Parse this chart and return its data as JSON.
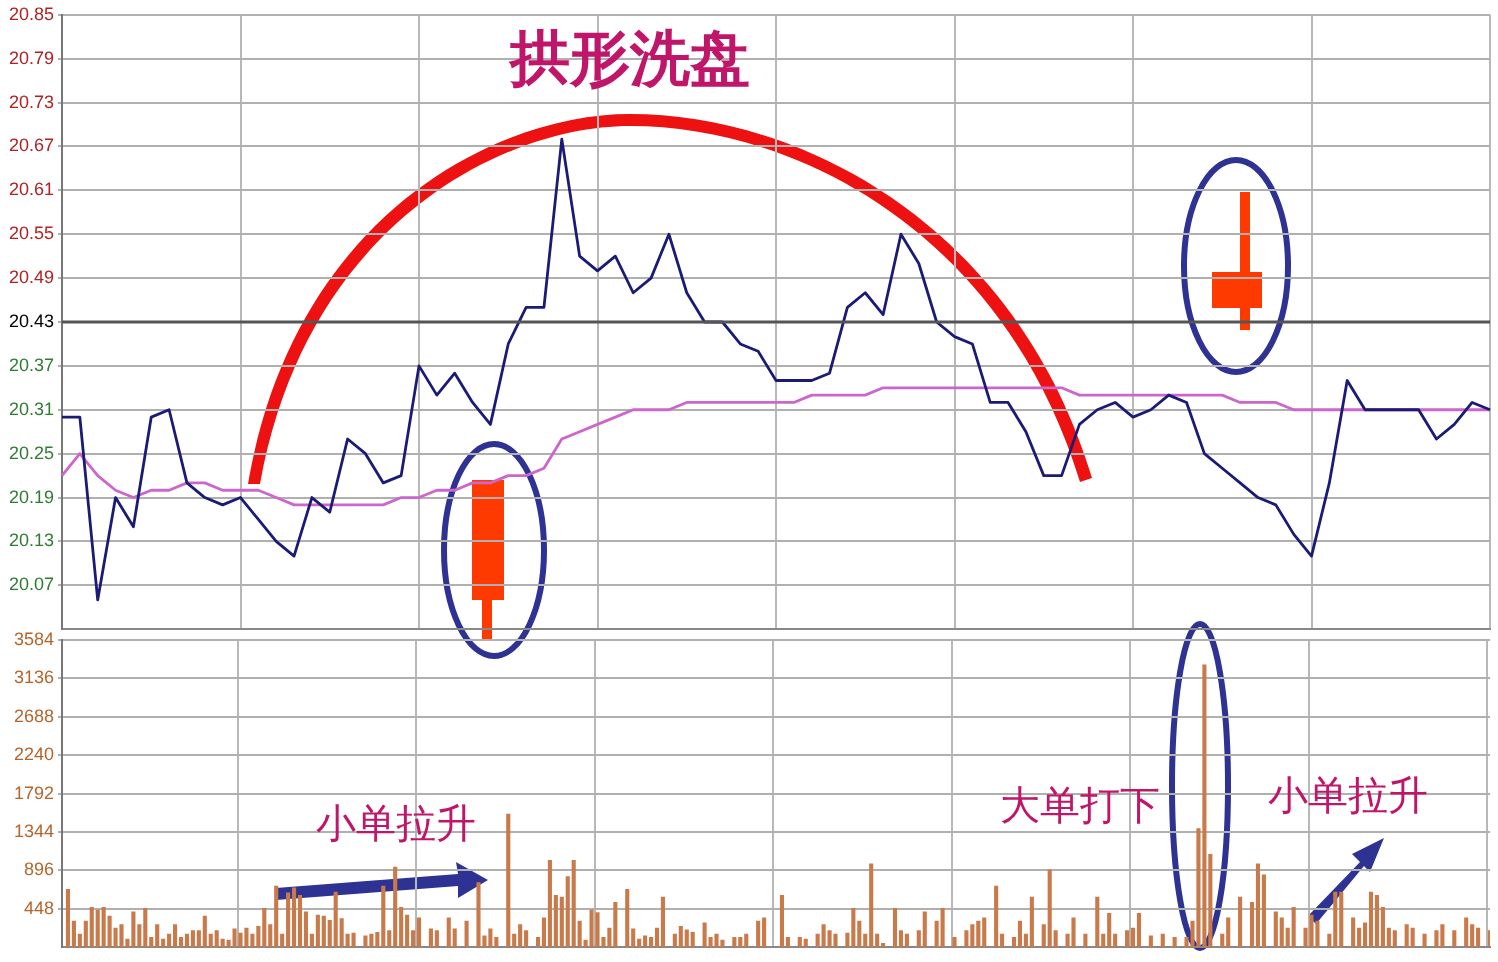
{
  "chart_data": [
    {
      "type": "line",
      "title": "拱形洗盘",
      "categories": [
        null,
        null,
        null,
        null,
        null,
        null,
        null,
        null,
        null,
        null,
        null,
        null,
        null,
        null,
        null,
        null,
        null,
        null,
        null,
        null,
        null,
        null,
        null,
        null,
        null,
        null,
        null,
        null,
        null,
        null,
        null,
        null,
        null,
        null,
        null,
        null,
        null,
        null,
        null,
        null,
        null,
        null,
        null,
        null,
        null,
        null,
        null,
        null,
        null,
        null,
        null,
        null,
        null,
        null,
        null,
        null,
        null,
        null,
        null,
        null,
        null,
        null,
        null,
        null,
        null,
        null,
        null,
        null,
        null,
        null,
        null,
        null,
        null,
        null,
        null,
        null,
        null,
        null,
        null,
        null,
        null
      ],
      "ylim": [
        20.01,
        20.85
      ],
      "yticks": [
        20.07,
        20.13,
        20.19,
        20.25,
        20.31,
        20.37,
        20.43,
        20.49,
        20.55,
        20.61,
        20.67,
        20.73,
        20.79,
        20.85
      ],
      "grid": true,
      "tick_labels": "y",
      "ref_lines": [
        {
          "axis": "y",
          "value": 20.43,
          "color": "#555555"
        }
      ],
      "series": [
        {
          "color": "#1b1b75",
          "values": [
            20.3,
            20.3,
            20.05,
            20.19,
            20.15,
            20.3,
            20.31,
            20.21,
            20.19,
            20.18,
            20.19,
            20.16,
            20.13,
            20.11,
            20.19,
            20.17,
            20.27,
            20.25,
            20.21,
            20.22,
            20.37,
            20.33,
            20.36,
            20.32,
            20.29,
            20.4,
            20.45,
            20.45,
            20.68,
            20.52,
            20.5,
            20.52,
            20.47,
            20.49,
            20.55,
            20.47,
            20.43,
            20.43,
            20.4,
            20.39,
            20.35,
            20.35,
            20.35,
            20.36,
            20.45,
            20.47,
            20.44,
            20.55,
            20.51,
            20.43,
            20.41,
            20.4,
            20.32,
            20.32,
            20.28,
            20.22,
            20.22,
            20.29,
            20.31,
            20.32,
            20.3,
            20.31,
            20.33,
            20.32,
            20.25,
            20.23,
            20.21,
            20.19,
            20.18,
            20.14,
            20.11,
            20.21,
            20.35,
            20.31,
            20.31,
            20.31,
            20.31,
            20.27,
            20.29,
            20.32,
            20.31
          ]
        },
        {
          "color": "#cc66cc",
          "values": [
            20.22,
            20.25,
            20.22,
            20.2,
            20.19,
            20.2,
            20.2,
            20.21,
            20.21,
            20.2,
            20.2,
            20.2,
            20.19,
            20.18,
            20.18,
            20.18,
            20.18,
            20.18,
            20.18,
            20.19,
            20.19,
            20.2,
            20.2,
            20.21,
            20.21,
            20.22,
            20.22,
            20.23,
            20.27,
            20.28,
            20.29,
            20.3,
            20.31,
            20.31,
            20.31,
            20.32,
            20.32,
            20.32,
            20.32,
            20.32,
            20.32,
            20.32,
            20.33,
            20.33,
            20.33,
            20.33,
            20.34,
            20.34,
            20.34,
            20.34,
            20.34,
            20.34,
            20.34,
            20.34,
            20.34,
            20.34,
            20.34,
            20.33,
            20.33,
            20.33,
            20.33,
            20.33,
            20.33,
            20.33,
            20.33,
            20.33,
            20.32,
            20.32,
            20.32,
            20.31,
            20.31,
            20.31,
            20.31,
            20.31,
            20.31,
            20.31,
            20.31,
            20.31,
            20.31,
            20.31,
            20.31
          ]
        }
      ]
    },
    {
      "type": "bar",
      "color": "#c87a4a",
      "categories": [
        null,
        null,
        null,
        null,
        null,
        null,
        null,
        null,
        null,
        null,
        null,
        null,
        null,
        null,
        null,
        null,
        null,
        null,
        null,
        null,
        null,
        null,
        null,
        null,
        null,
        null,
        null,
        null,
        null,
        null,
        null,
        null,
        null,
        null,
        null,
        null,
        null,
        null,
        null,
        null,
        null,
        null,
        null,
        null,
        null,
        null,
        null,
        null,
        null,
        null,
        null,
        null,
        null,
        null,
        null,
        null,
        null,
        null,
        null,
        null,
        null,
        null,
        null,
        null,
        null,
        null,
        null,
        null,
        null,
        null,
        null,
        null,
        null,
        null,
        null,
        null,
        null,
        null,
        null,
        null,
        null,
        null,
        null,
        null,
        null,
        null,
        null,
        null,
        null,
        null,
        null,
        null,
        null,
        null,
        null,
        null,
        null,
        null,
        null,
        null,
        null,
        null,
        null,
        null,
        null,
        null,
        null,
        null,
        null,
        null,
        null,
        null,
        null,
        null,
        null,
        null,
        null,
        null,
        null,
        null,
        null,
        null,
        null,
        null,
        null,
        null,
        null,
        null,
        null,
        null,
        null,
        null,
        null,
        null,
        null,
        null,
        null,
        null,
        null,
        null,
        null,
        null,
        null,
        null,
        null,
        null,
        null,
        null,
        null,
        null,
        null,
        null,
        null,
        null,
        null,
        null,
        null,
        null,
        null,
        null,
        null,
        null,
        null,
        null,
        null,
        null,
        null,
        null,
        null,
        null,
        null,
        null,
        null,
        null,
        null,
        null,
        null,
        null,
        null,
        null,
        null,
        null,
        null,
        null,
        null,
        null,
        null,
        null,
        null,
        null,
        null,
        null,
        null,
        null,
        null,
        null,
        null,
        null,
        null,
        null,
        null,
        null,
        null,
        null,
        null,
        null,
        null,
        null,
        null,
        null,
        null,
        null,
        null,
        null,
        null,
        null,
        null,
        null,
        null,
        null,
        null,
        null,
        null,
        null,
        null,
        null,
        null,
        null,
        null,
        null,
        null,
        null,
        null,
        null,
        null,
        null,
        null,
        null,
        null,
        null,
        null
      ],
      "ylim": [
        0,
        3584
      ],
      "yticks": [
        448,
        896,
        1344,
        1792,
        2240,
        2688,
        3136,
        3584
      ],
      "grid": true,
      "tick_labels": "y",
      "annotations": [
        "小单拉升",
        "大单打下",
        "小单拉升"
      ],
      "values": [
        null,
        670,
        300,
        150,
        300,
        460,
        430,
        460,
        360,
        220,
        260,
        90,
        410,
        260,
        450,
        110,
        260,
        90,
        150,
        260,
        110,
        150,
        190,
        190,
        360,
        150,
        190,
        90,
        80,
        210,
        160,
        220,
        150,
        240,
        450,
        260,
        710,
        150,
        630,
        690,
        600,
        410,
        150,
        370,
        360,
        310,
        640,
        330,
        150,
        160,
        null,
        130,
        150,
        170,
        710,
        190,
        930,
        460,
        370,
        190,
        340,
        null,
        210,
        190,
        null,
        340,
        210,
        null,
        300,
        null,
        750,
        130,
        210,
        110,
        null,
        1550,
        150,
        260,
        190,
        null,
        110,
        340,
        1010,
        600,
        580,
        820,
        1010,
        300,
        80,
        430,
        400,
        110,
        220,
        520,
        null,
        670,
        210,
        90,
        130,
        110,
        220,
        580,
        null,
        150,
        240,
        200,
        170,
        null,
        280,
        110,
        150,
        80,
        null,
        110,
        110,
        150,
        null,
        300,
        340,
        null,
        null,
        600,
        110,
        null,
        110,
        90,
        null,
        150,
        260,
        190,
        150,
        null,
        160,
        450,
        300,
        150,
        970,
        150,
        40,
        null,
        450,
        190,
        150,
        null,
        190,
        410,
        null,
        300,
        450,
        null,
        110,
        null,
        190,
        260,
        300,
        340,
        null,
        710,
        150,
        null,
        110,
        300,
        150,
        580,
        null,
        260,
        900,
        190,
        null,
        150,
        340,
        null,
        150,
        null,
        580,
        150,
        390,
        150,
        null,
        190,
        220,
        390,
        null,
        130,
        null,
        150,
        null,
        110,
        null,
        110,
        300,
        1380,
        3290,
        1080,
        null,
        150,
        340,
        null,
        580,
        null,
        520,
        970,
        840,
        null,
        410,
        340,
        220,
        460,
        null,
        220,
        370,
        300,
        null,
        150,
        640,
        640,
        null,
        340,
        220,
        280,
        640,
        600,
        460,
        220,
        190,
        null,
        260,
        220,
        null,
        150,
        null,
        190,
        260,
        null,
        190,
        null,
        340,
        260,
        220,
        null,
        190
      ]
    }
  ]
}
